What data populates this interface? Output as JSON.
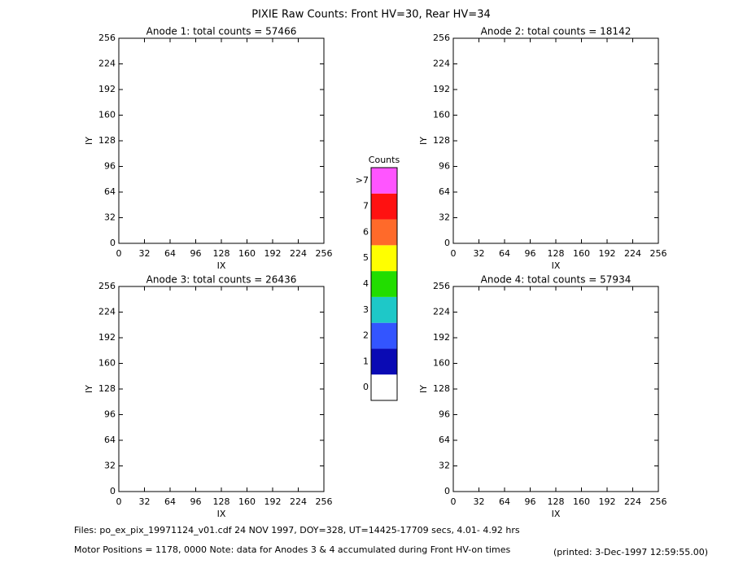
{
  "title": "PIXIE Raw Counts:  Front HV=30, Rear HV=34",
  "chart_data": [
    {
      "type": "heatmap",
      "title": "Anode 1: total counts = 57466",
      "xlabel": "IX",
      "ylabel": "IY",
      "xlim": [
        0,
        256
      ],
      "ylim": [
        0,
        256
      ],
      "xticks": [
        0,
        32,
        64,
        96,
        128,
        160,
        192,
        224,
        256
      ],
      "yticks": [
        0,
        32,
        64,
        96,
        128,
        160,
        192,
        224,
        256
      ]
    },
    {
      "type": "heatmap",
      "title": "Anode 2: total counts = 18142",
      "xlabel": "IX",
      "ylabel": "IY",
      "xlim": [
        0,
        256
      ],
      "ylim": [
        0,
        256
      ],
      "xticks": [
        0,
        32,
        64,
        96,
        128,
        160,
        192,
        224,
        256
      ],
      "yticks": [
        0,
        32,
        64,
        96,
        128,
        160,
        192,
        224,
        256
      ]
    },
    {
      "type": "heatmap",
      "title": "Anode 3: total counts = 26436",
      "xlabel": "IX",
      "ylabel": "IY",
      "xlim": [
        0,
        256
      ],
      "ylim": [
        0,
        256
      ],
      "xticks": [
        0,
        32,
        64,
        96,
        128,
        160,
        192,
        224,
        256
      ],
      "yticks": [
        0,
        32,
        64,
        96,
        128,
        160,
        192,
        224,
        256
      ]
    },
    {
      "type": "heatmap",
      "title": "Anode 4: total counts = 57934",
      "xlabel": "IX",
      "ylabel": "IY",
      "xlim": [
        0,
        256
      ],
      "ylim": [
        0,
        256
      ],
      "xticks": [
        0,
        32,
        64,
        96,
        128,
        160,
        192,
        224,
        256
      ],
      "yticks": [
        0,
        32,
        64,
        96,
        128,
        160,
        192,
        224,
        256
      ]
    }
  ],
  "colorbar": {
    "title": "Counts",
    "labels": [
      "0",
      "1",
      "2",
      "3",
      "4",
      "5",
      "6",
      "7",
      ">7"
    ],
    "colors": [
      "#ffffff",
      "#0a0ab4",
      "#3355ff",
      "#1ec8c8",
      "#22dd00",
      "#ffff00",
      "#ff6a2a",
      "#ff1111",
      "#ff55ff"
    ]
  },
  "footer": {
    "files": "Files: po_ex_pix_19971124_v01.cdf   24 NOV 1997, DOY=328, UT=14425-17709 secs,  4.01- 4.92 hrs",
    "motor": "Motor Positions = 1178, 0000   Note: data for Anodes 3 & 4 accumulated during Front HV-on times",
    "printed": "(printed:  3-Dec-1997 12:59:55.00)"
  }
}
